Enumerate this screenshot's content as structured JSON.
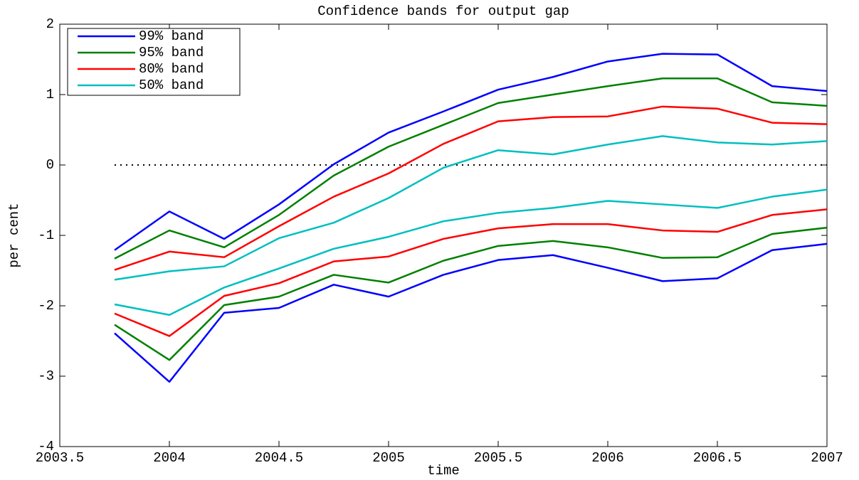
{
  "chart_data": {
    "type": "line",
    "title": "Confidence bands for output gap",
    "xlabel": "time",
    "ylabel": "per cent",
    "x": [
      2003.75,
      2004,
      2004.25,
      2004.5,
      2004.75,
      2005,
      2005.25,
      2005.5,
      2005.75,
      2006,
      2006.25,
      2006.5,
      2006.75,
      2007
    ],
    "series": [
      {
        "name": "99% band",
        "color": "#0000ff",
        "upper": [
          -1.21,
          -0.66,
          -1.05,
          -0.56,
          0.01,
          0.46,
          0.76,
          1.07,
          1.25,
          1.47,
          1.58,
          1.57,
          1.12,
          1.05
        ],
        "lower": [
          -2.39,
          -3.08,
          -2.1,
          -2.03,
          -1.7,
          -1.87,
          -1.56,
          -1.35,
          -1.28,
          -1.46,
          -1.65,
          -1.61,
          -1.21,
          -1.12
        ]
      },
      {
        "name": "95% band",
        "color": "#008000",
        "upper": [
          -1.33,
          -0.93,
          -1.17,
          -0.71,
          -0.15,
          0.26,
          0.57,
          0.88,
          1.0,
          1.12,
          1.23,
          1.23,
          0.89,
          0.84
        ],
        "lower": [
          -2.27,
          -2.77,
          -1.99,
          -1.87,
          -1.56,
          -1.67,
          -1.36,
          -1.15,
          -1.08,
          -1.17,
          -1.32,
          -1.31,
          -0.98,
          -0.89
        ]
      },
      {
        "name": "80% band",
        "color": "#ff0000",
        "upper": [
          -1.49,
          -1.23,
          -1.31,
          -0.87,
          -0.45,
          -0.12,
          0.3,
          0.62,
          0.68,
          0.69,
          0.83,
          0.8,
          0.6,
          0.58
        ],
        "lower": [
          -2.11,
          -2.43,
          -1.86,
          -1.68,
          -1.37,
          -1.3,
          -1.05,
          -0.9,
          -0.84,
          -0.84,
          -0.93,
          -0.95,
          -0.71,
          -0.63
        ]
      },
      {
        "name": "50% band",
        "color": "#00bfbf",
        "upper": [
          -1.63,
          -1.51,
          -1.44,
          -1.04,
          -0.82,
          -0.47,
          -0.04,
          0.21,
          0.15,
          0.29,
          0.41,
          0.32,
          0.29,
          0.34
        ],
        "lower": [
          -1.98,
          -2.13,
          -1.74,
          -1.47,
          -1.19,
          -1.02,
          -0.8,
          -0.68,
          -0.61,
          -0.51,
          -0.56,
          -0.61,
          -0.45,
          -0.35
        ]
      }
    ],
    "reference_line": 0,
    "xlim": [
      2003.5,
      2007
    ],
    "xticks": [
      2003.5,
      2004,
      2004.5,
      2005,
      2005.5,
      2006,
      2006.5,
      2007
    ],
    "ylim": [
      -4,
      2
    ],
    "yticks": [
      -4,
      -3,
      -2,
      -1,
      0,
      1,
      2
    ],
    "legend": "upper-left"
  }
}
